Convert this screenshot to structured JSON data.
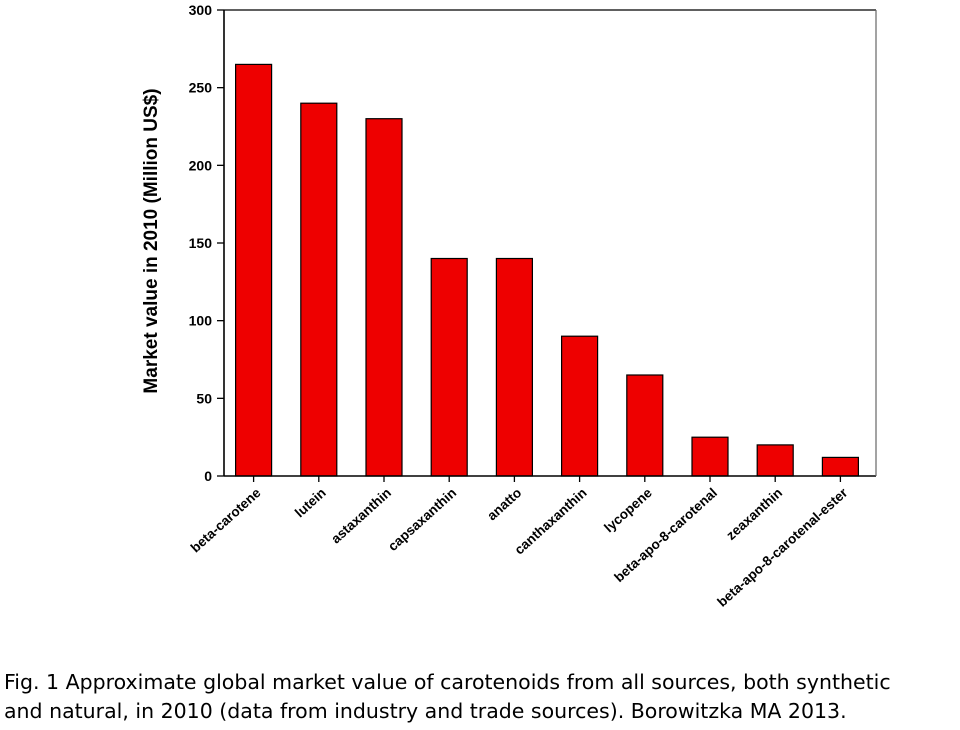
{
  "chart_data": {
    "type": "bar",
    "categories": [
      "beta-carotene",
      "lutein",
      "astaxanthin",
      "capsaxanthin",
      "anatto",
      "canthaxanthin",
      "lycopene",
      "beta-apo-8-carotenal",
      "zeaxanthin",
      "beta-apo-8-carotenal-ester"
    ],
    "values": [
      265,
      240,
      230,
      140,
      140,
      90,
      65,
      25,
      20,
      12
    ],
    "title": "",
    "xlabel": "",
    "ylabel": "Market value in 2010 (Million US$)",
    "ylim": [
      0,
      300
    ],
    "yticks": [
      "0",
      "50",
      "100",
      "150",
      "200",
      "250",
      "300"
    ],
    "grid": false,
    "legend": "none",
    "bar_color": "#ee0000",
    "bar_edge_color": "#000000"
  },
  "caption": {
    "line1": "Fig. 1 Approximate global market value of carotenoids from all sources, both synthetic",
    "line2": "and natural, in 2010 (data from industry and trade sources). Borowitzka MA 2013."
  }
}
